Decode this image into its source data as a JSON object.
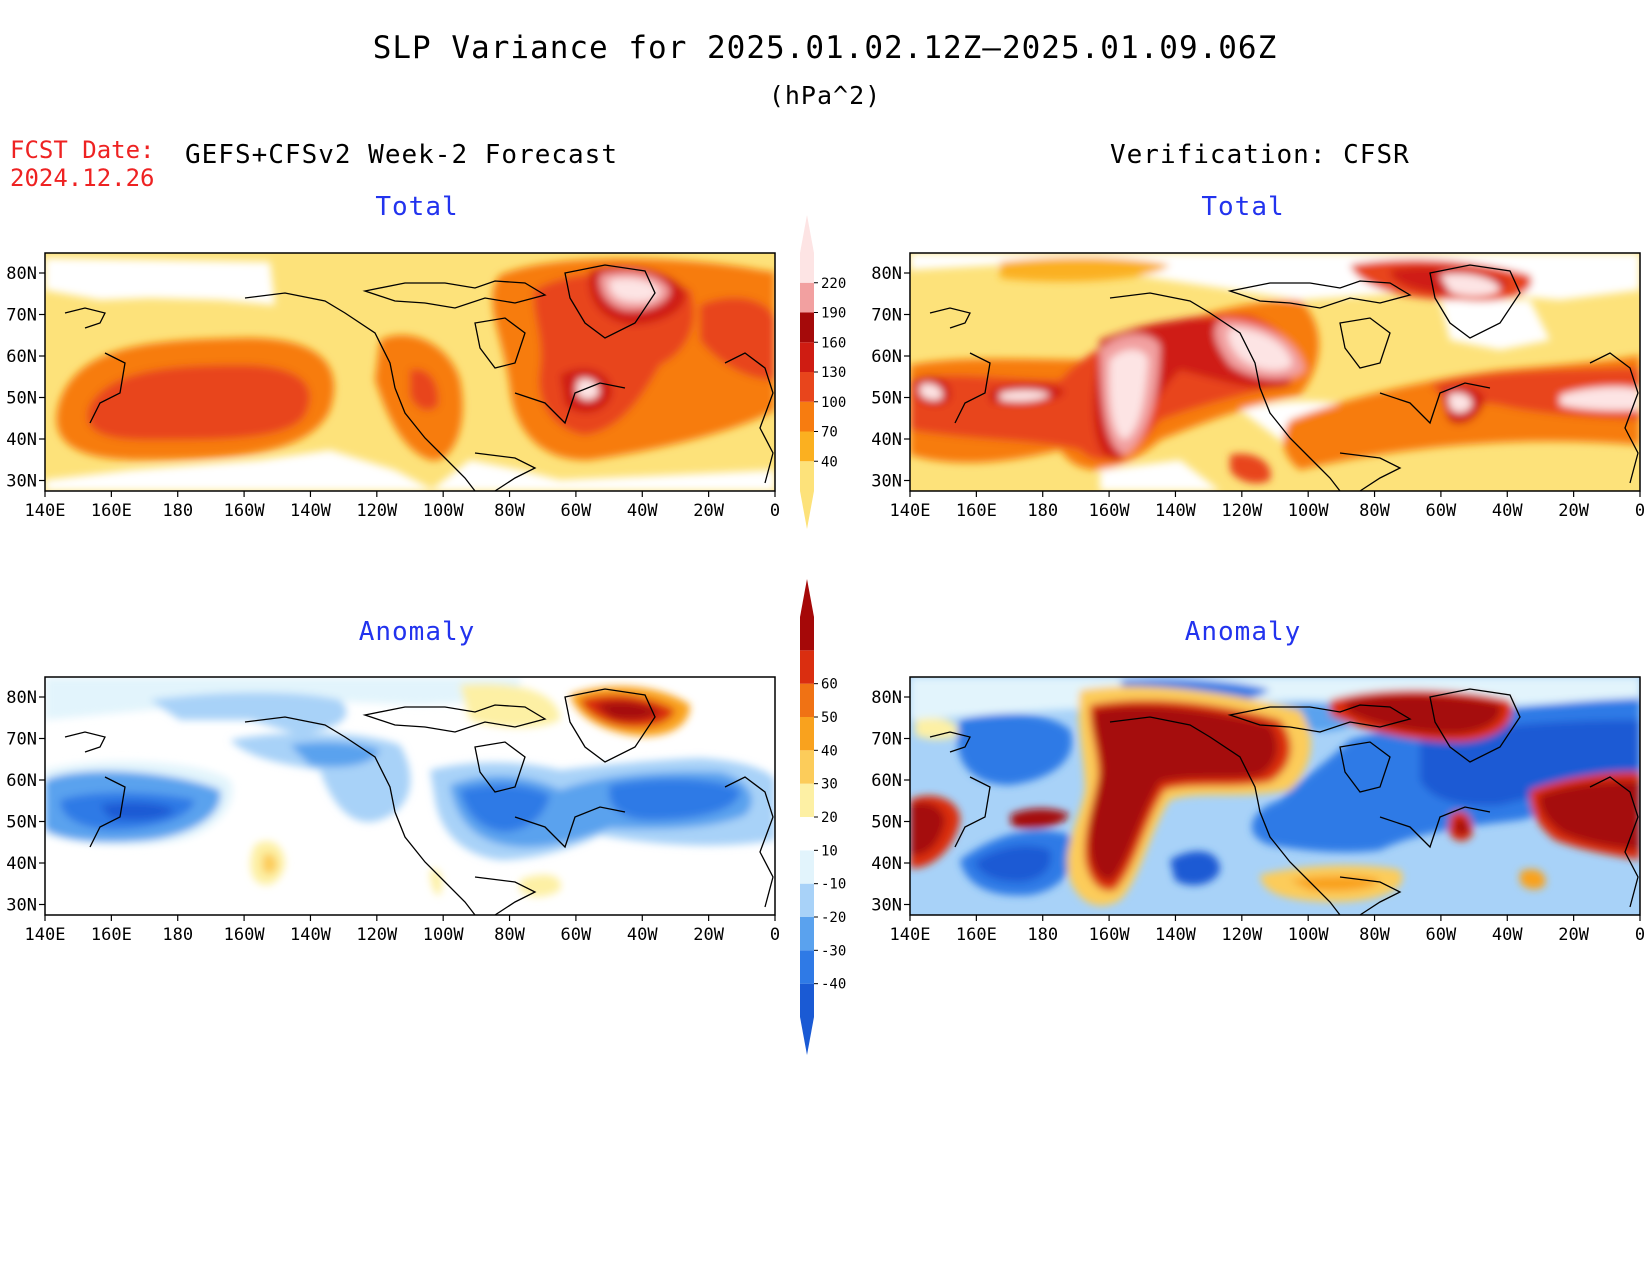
{
  "header": {
    "title": "SLP Variance for 2025.01.02.12Z—2025.01.09.06Z",
    "units": "(hPa^2)",
    "fcst_date_label": "FCST Date:",
    "fcst_date_value": "2024.12.26",
    "left_column_label": "GEFS+CFSv2 Week-2 Forecast",
    "right_column_label": "Verification: CFSR"
  },
  "panels": [
    {
      "id": "forecast-total",
      "title": "Total"
    },
    {
      "id": "verification-total",
      "title": "Total"
    },
    {
      "id": "forecast-anomaly",
      "title": "Anomaly"
    },
    {
      "id": "verification-anomaly",
      "title": "Anomaly"
    }
  ],
  "axes": {
    "lat_labels": [
      "80N",
      "70N",
      "60N",
      "50N",
      "40N",
      "30N"
    ],
    "lon_labels": [
      "140E",
      "160E",
      "180",
      "160W",
      "140W",
      "120W",
      "100W",
      "80W",
      "60W",
      "40W",
      "20W",
      "0"
    ]
  },
  "colorbars": {
    "total": {
      "levels": [
        "40",
        "70",
        "100",
        "130",
        "160",
        "190",
        "220"
      ],
      "colors": [
        "#fde27a",
        "#fbb020",
        "#f77c10",
        "#e8451c",
        "#cf1c12",
        "#a50a0a",
        "#f2a0a0",
        "#fde4e4"
      ]
    },
    "anomaly": {
      "levels": [
        "-40",
        "-30",
        "-20",
        "-10",
        "10",
        "20",
        "30",
        "40",
        "50",
        "60"
      ],
      "colors": [
        "#1a5ad4",
        "#2f7ae6",
        "#5aa2ee",
        "#a8d2f8",
        "#e2f4fc",
        "#ffffff",
        "#fdf0a4",
        "#fccc5a",
        "#f9a21e",
        "#f07214",
        "#da2e10",
        "#a50808"
      ]
    }
  }
}
